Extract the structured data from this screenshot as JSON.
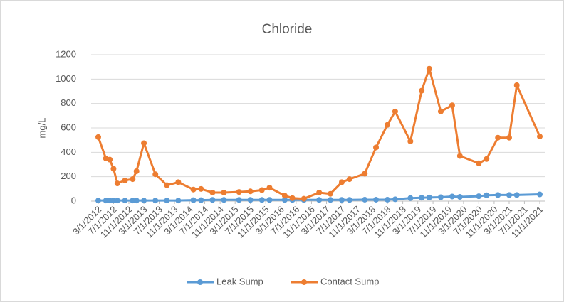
{
  "chart_data": {
    "type": "line",
    "title": "Chloride",
    "y_label": "mg/L",
    "x": [
      "3/1/2012",
      "5/1/2012",
      "6/1/2012",
      "7/1/2012",
      "8/1/2012",
      "10/1/2012",
      "12/1/2012",
      "1/1/2013",
      "3/1/2013",
      "6/1/2013",
      "9/1/2013",
      "12/1/2013",
      "4/1/2014",
      "6/1/2014",
      "9/1/2014",
      "12/1/2014",
      "4/1/2015",
      "7/1/2015",
      "10/1/2015",
      "12/1/2015",
      "4/1/2016",
      "6/1/2016",
      "9/1/2016",
      "1/1/2017",
      "4/1/2017",
      "7/1/2017",
      "9/1/2017",
      "1/1/2018",
      "4/1/2018",
      "7/1/2018",
      "9/1/2018",
      "1/1/2019",
      "4/1/2019",
      "6/1/2019",
      "9/1/2019",
      "12/1/2019",
      "2/1/2020",
      "7/1/2020",
      "9/1/2020",
      "12/1/2020",
      "3/1/2021",
      "5/1/2021",
      "11/1/2021"
    ],
    "series": [
      {
        "name": "Leak Sump",
        "color": "#5b9bd5",
        "values": [
          5,
          5,
          5,
          5,
          5,
          5,
          5,
          5,
          5,
          5,
          5,
          5,
          8,
          8,
          10,
          10,
          10,
          10,
          10,
          10,
          10,
          10,
          10,
          10,
          10,
          10,
          10,
          12,
          12,
          12,
          15,
          25,
          28,
          30,
          32,
          38,
          35,
          40,
          48,
          50,
          50,
          50,
          55
        ]
      },
      {
        "name": "Contact Sump",
        "color": "#ed7d31",
        "values": [
          525,
          350,
          340,
          265,
          145,
          170,
          180,
          245,
          475,
          220,
          130,
          155,
          95,
          100,
          70,
          70,
          75,
          80,
          90,
          110,
          45,
          25,
          20,
          70,
          60,
          155,
          180,
          225,
          440,
          625,
          735,
          490,
          905,
          1085,
          735,
          785,
          370,
          310,
          345,
          520,
          520,
          950,
          530
        ]
      }
    ],
    "xlim": [
      "3/1/2012",
      "11/1/2021"
    ],
    "xticks": [
      "3/1/2012",
      "7/1/2012",
      "11/1/2012",
      "3/1/2013",
      "7/1/2013",
      "11/1/2013",
      "3/1/2014",
      "7/1/2014",
      "11/1/2014",
      "3/1/2015",
      "7/1/2015",
      "11/1/2015",
      "3/1/2016",
      "7/1/2016",
      "11/1/2016",
      "3/1/2017",
      "7/1/2017",
      "11/1/2017",
      "3/1/2018",
      "7/1/2018",
      "11/1/2018",
      "3/1/2019",
      "7/1/2019",
      "11/1/2019",
      "3/1/2020",
      "7/1/2020",
      "11/1/2020",
      "3/1/2021",
      "7/1/2021",
      "11/1/2021"
    ],
    "ylim": [
      0,
      1200
    ],
    "yticks": [
      0,
      200,
      400,
      600,
      800,
      1000,
      1200
    ],
    "grid": true,
    "legend": "bottom"
  }
}
